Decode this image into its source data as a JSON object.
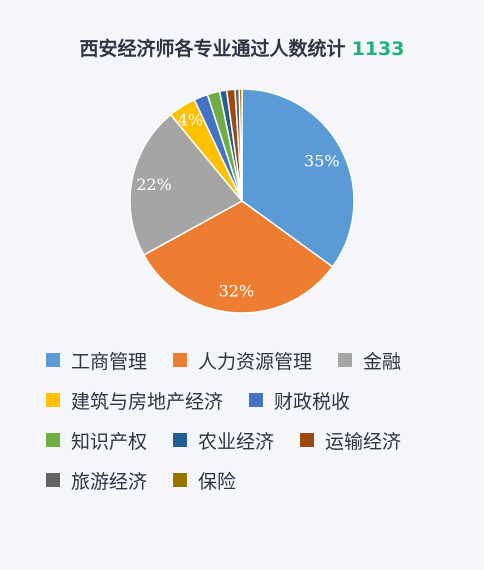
{
  "title": {
    "text": "西安经济师各专业通过人数统计",
    "total": "1133"
  },
  "chart_data": {
    "type": "pie",
    "title": "西安经济师各专业通过人数统计",
    "start": "top, clockwise",
    "slices": [
      {
        "name": "工商管理",
        "value": 35,
        "label": "35%",
        "color": "#5b9bd5"
      },
      {
        "name": "人力资源管理",
        "value": 32,
        "label": "32%",
        "color": "#ed7d31"
      },
      {
        "name": "金融",
        "value": 22,
        "label": "22%",
        "color": "#a5a5a5"
      },
      {
        "name": "建筑与房地产经济",
        "value": 4,
        "label": "4%",
        "color": "#ffc000"
      },
      {
        "name": "财政税收",
        "value": 2,
        "label": "",
        "color": "#4472c4"
      },
      {
        "name": "知识产权",
        "value": 1.8,
        "label": "",
        "color": "#70ad47"
      },
      {
        "name": "农业经济",
        "value": 1,
        "label": "",
        "color": "#255e91"
      },
      {
        "name": "运输经济",
        "value": 1.2,
        "label": "",
        "color": "#9e480e"
      },
      {
        "name": "旅游经济",
        "value": 0.6,
        "label": "",
        "color": "#636363"
      },
      {
        "name": "保险",
        "value": 0.4,
        "label": "",
        "color": "#997300"
      }
    ],
    "legend_position": "bottom"
  }
}
